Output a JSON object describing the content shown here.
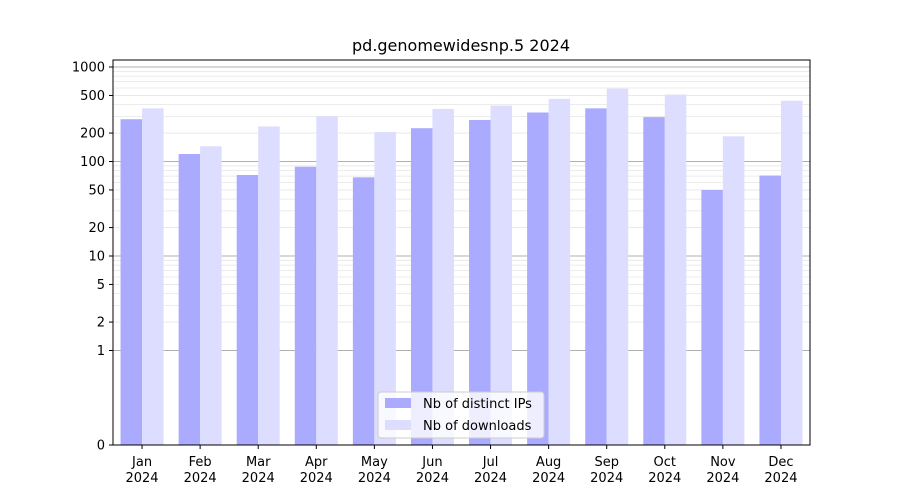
{
  "chart_data": {
    "type": "bar",
    "title": "pd.genomewidesnp.5 2024",
    "scale": "symlog",
    "categories": [
      [
        "Jan",
        "2024"
      ],
      [
        "Feb",
        "2024"
      ],
      [
        "Mar",
        "2024"
      ],
      [
        "Apr",
        "2024"
      ],
      [
        "May",
        "2024"
      ],
      [
        "Jun",
        "2024"
      ],
      [
        "Jul",
        "2024"
      ],
      [
        "Aug",
        "2024"
      ],
      [
        "Sep",
        "2024"
      ],
      [
        "Oct",
        "2024"
      ],
      [
        "Nov",
        "2024"
      ],
      [
        "Dec",
        "2024"
      ]
    ],
    "series": [
      {
        "name": "Nb of distinct IPs",
        "color": "#aaaaff",
        "values": [
          280,
          120,
          72,
          88,
          68,
          225,
          275,
          330,
          365,
          295,
          50,
          71
        ]
      },
      {
        "name": "Nb of downloads",
        "color": "#ddddff",
        "values": [
          365,
          145,
          235,
          300,
          205,
          360,
          390,
          460,
          590,
          510,
          185,
          440
        ]
      }
    ],
    "yticks": [
      0,
      1,
      2,
      5,
      10,
      20,
      50,
      100,
      200,
      500,
      1000
    ],
    "ytick_labels": [
      "0",
      "1",
      "2",
      "5",
      "10",
      "20",
      "50",
      "100",
      "200",
      "500",
      "1000"
    ],
    "grid": true,
    "legend_position": "bottom-center"
  }
}
